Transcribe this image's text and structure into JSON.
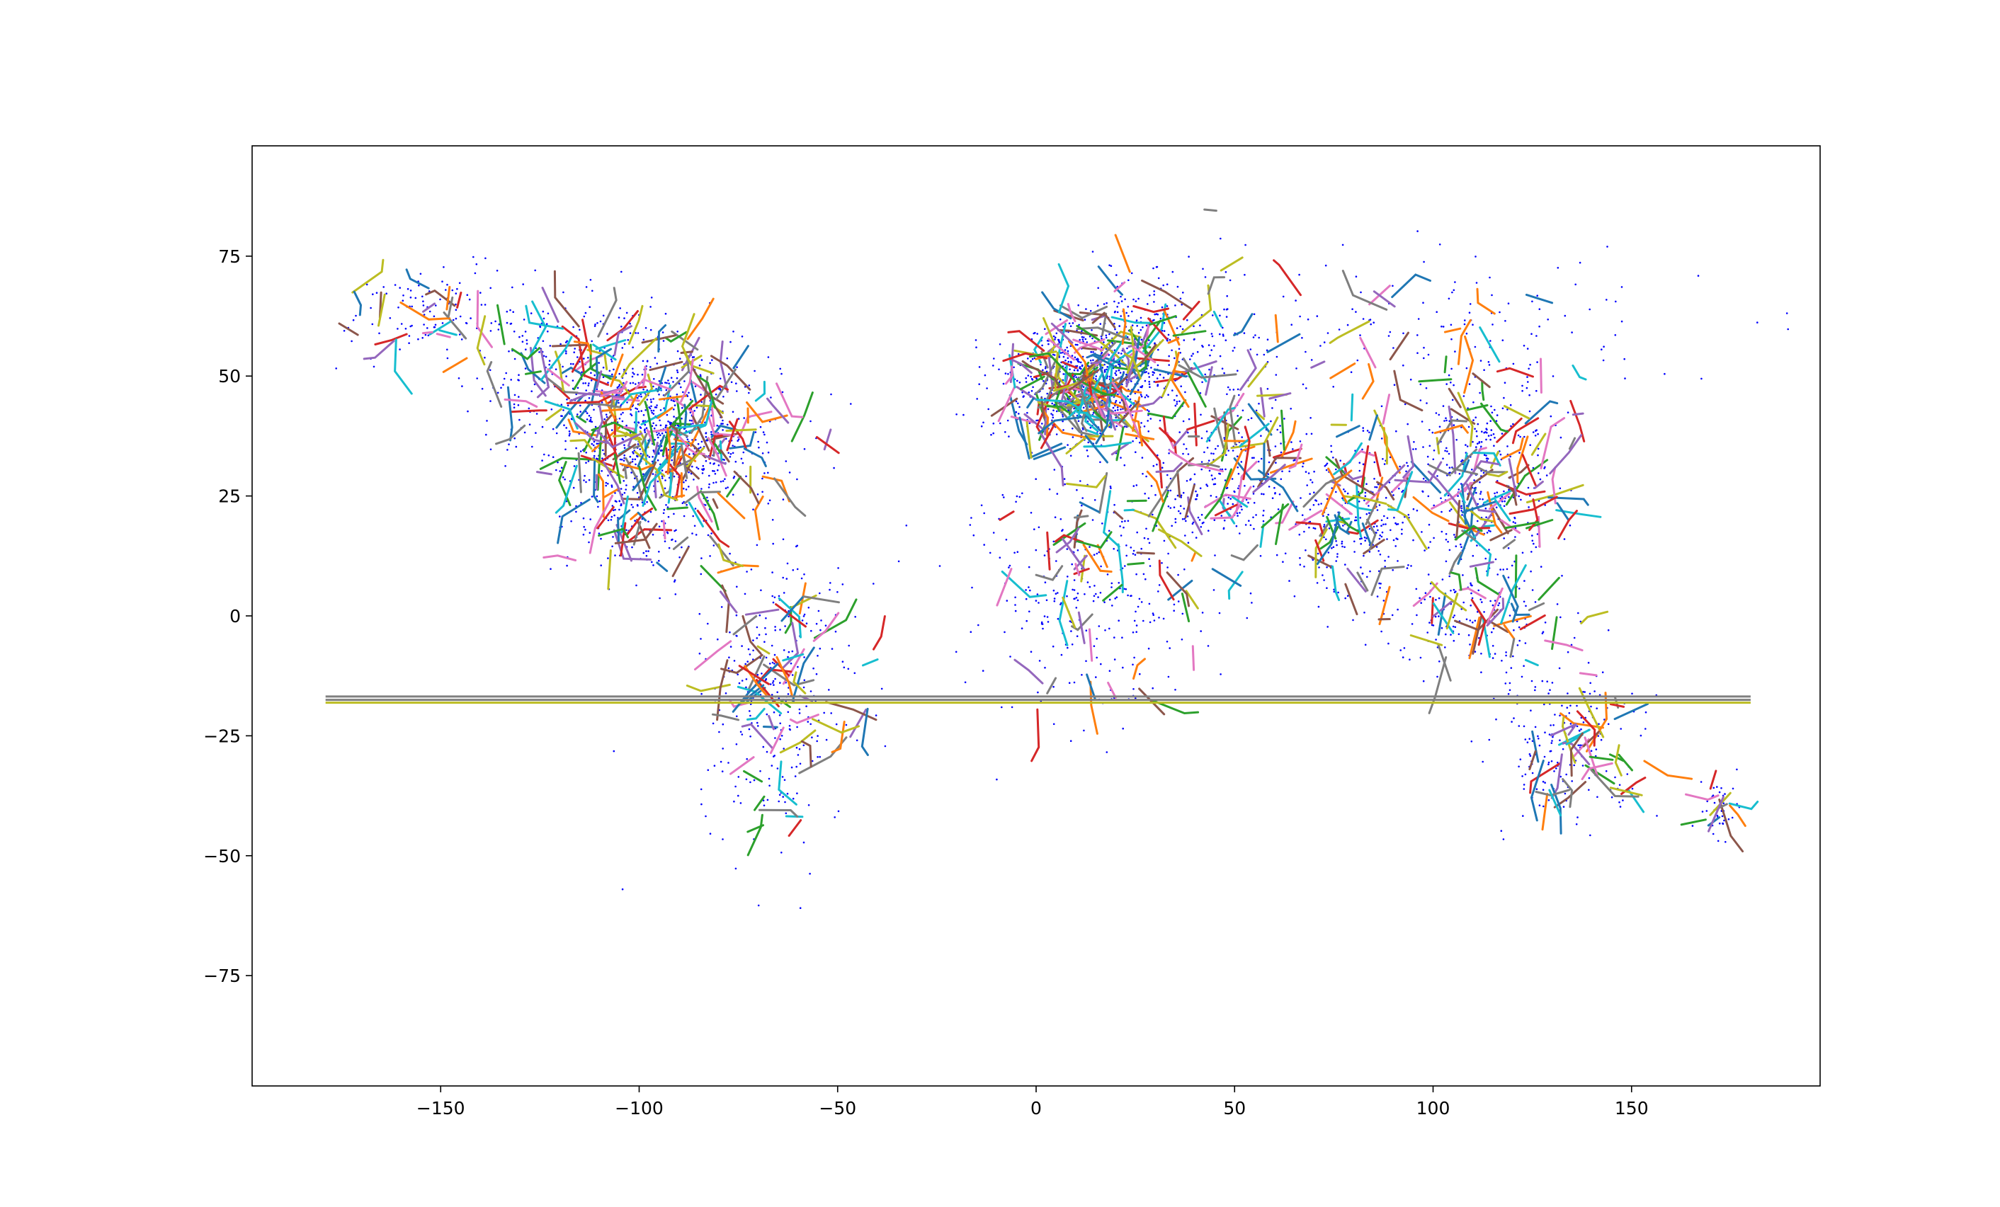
{
  "chart_data": {
    "type": "scatter",
    "title": "",
    "xlabel": "",
    "ylabel": "",
    "xlim": [
      -197.5,
      197.5
    ],
    "ylim": [
      -98,
      98
    ],
    "grid": false,
    "legend": "none",
    "x_ticks": [
      {
        "value": -150,
        "label": "−150"
      },
      {
        "value": -100,
        "label": "−100"
      },
      {
        "value": -50,
        "label": "−50"
      },
      {
        "value": 0,
        "label": "0"
      },
      {
        "value": 50,
        "label": "50"
      },
      {
        "value": 100,
        "label": "100"
      },
      {
        "value": 150,
        "label": "150"
      }
    ],
    "y_ticks": [
      {
        "value": 75,
        "label": "75"
      },
      {
        "value": 50,
        "label": "50"
      },
      {
        "value": 25,
        "label": "25"
      },
      {
        "value": 0,
        "label": "0"
      },
      {
        "value": -25,
        "label": "−25"
      },
      {
        "value": -50,
        "label": "−50"
      },
      {
        "value": -75,
        "label": "−75"
      }
    ],
    "point_color": "#0000ff",
    "route_colors": [
      "#1f77b4",
      "#ff7f0e",
      "#2ca02c",
      "#d62728",
      "#9467bd",
      "#8c564b",
      "#e377c2",
      "#7f7f7f",
      "#bcbd22",
      "#17becf"
    ],
    "long_lines": [
      {
        "x": [
          -179,
          180
        ],
        "y": [
          -16.8,
          -16.8
        ],
        "color": "#7f7f7f"
      },
      {
        "x": [
          -179,
          180
        ],
        "y": [
          -18.1,
          -18.1
        ],
        "color": "#bcbd22"
      },
      {
        "x": [
          -179,
          180
        ],
        "y": [
          -17.5,
          -17.5
        ],
        "color": "#7f7f7f"
      }
    ],
    "point_clusters": [
      {
        "x": -95,
        "y": 38,
        "sx": 15,
        "sy": 8,
        "n": 700
      },
      {
        "x": -110,
        "y": 52,
        "sx": 15,
        "sy": 7,
        "n": 250
      },
      {
        "x": -150,
        "y": 63,
        "sx": 12,
        "sy": 5,
        "n": 120
      },
      {
        "x": -100,
        "y": 20,
        "sx": 9,
        "sy": 6,
        "n": 140
      },
      {
        "x": -65,
        "y": -15,
        "sx": 10,
        "sy": 15,
        "n": 300
      },
      {
        "x": 12,
        "y": 48,
        "sx": 10,
        "sy": 6,
        "n": 700
      },
      {
        "x": 30,
        "y": 58,
        "sx": 12,
        "sy": 7,
        "n": 250
      },
      {
        "x": 15,
        "y": 10,
        "sx": 15,
        "sy": 15,
        "n": 350
      },
      {
        "x": 48,
        "y": 30,
        "sx": 10,
        "sy": 8,
        "n": 250
      },
      {
        "x": 80,
        "y": 20,
        "sx": 8,
        "sy": 8,
        "n": 250
      },
      {
        "x": 112,
        "y": 30,
        "sx": 10,
        "sy": 10,
        "n": 350
      },
      {
        "x": 110,
        "y": 0,
        "sx": 10,
        "sy": 5,
        "n": 150
      },
      {
        "x": 133,
        "y": -25,
        "sx": 10,
        "sy": 8,
        "n": 200
      },
      {
        "x": 100,
        "y": 60,
        "sx": 35,
        "sy": 8,
        "n": 150
      },
      {
        "x": 172,
        "y": -40,
        "sx": 3,
        "sy": 3,
        "n": 40
      }
    ],
    "route_clusters": [
      {
        "x": -95,
        "y": 38,
        "sx": 14,
        "sy": 8,
        "n": 160
      },
      {
        "x": -110,
        "y": 52,
        "sx": 14,
        "sy": 7,
        "n": 45
      },
      {
        "x": -150,
        "y": 63,
        "sx": 12,
        "sy": 4,
        "n": 25
      },
      {
        "x": -95,
        "y": 20,
        "sx": 8,
        "sy": 6,
        "n": 30
      },
      {
        "x": -65,
        "y": -15,
        "sx": 10,
        "sy": 15,
        "n": 70
      },
      {
        "x": 12,
        "y": 48,
        "sx": 10,
        "sy": 6,
        "n": 160
      },
      {
        "x": 30,
        "y": 58,
        "sx": 12,
        "sy": 7,
        "n": 50
      },
      {
        "x": 15,
        "y": 5,
        "sx": 14,
        "sy": 15,
        "n": 55
      },
      {
        "x": 50,
        "y": 30,
        "sx": 10,
        "sy": 8,
        "n": 60
      },
      {
        "x": 80,
        "y": 22,
        "sx": 8,
        "sy": 8,
        "n": 60
      },
      {
        "x": 115,
        "y": 30,
        "sx": 10,
        "sy": 10,
        "n": 90
      },
      {
        "x": 112,
        "y": 0,
        "sx": 10,
        "sy": 5,
        "n": 35
      },
      {
        "x": 140,
        "y": -30,
        "sx": 7,
        "sy": 6,
        "n": 40
      },
      {
        "x": 90,
        "y": 57,
        "sx": 30,
        "sy": 6,
        "n": 25
      },
      {
        "x": 172,
        "y": -40,
        "sx": 3,
        "sy": 3,
        "n": 10
      }
    ]
  }
}
